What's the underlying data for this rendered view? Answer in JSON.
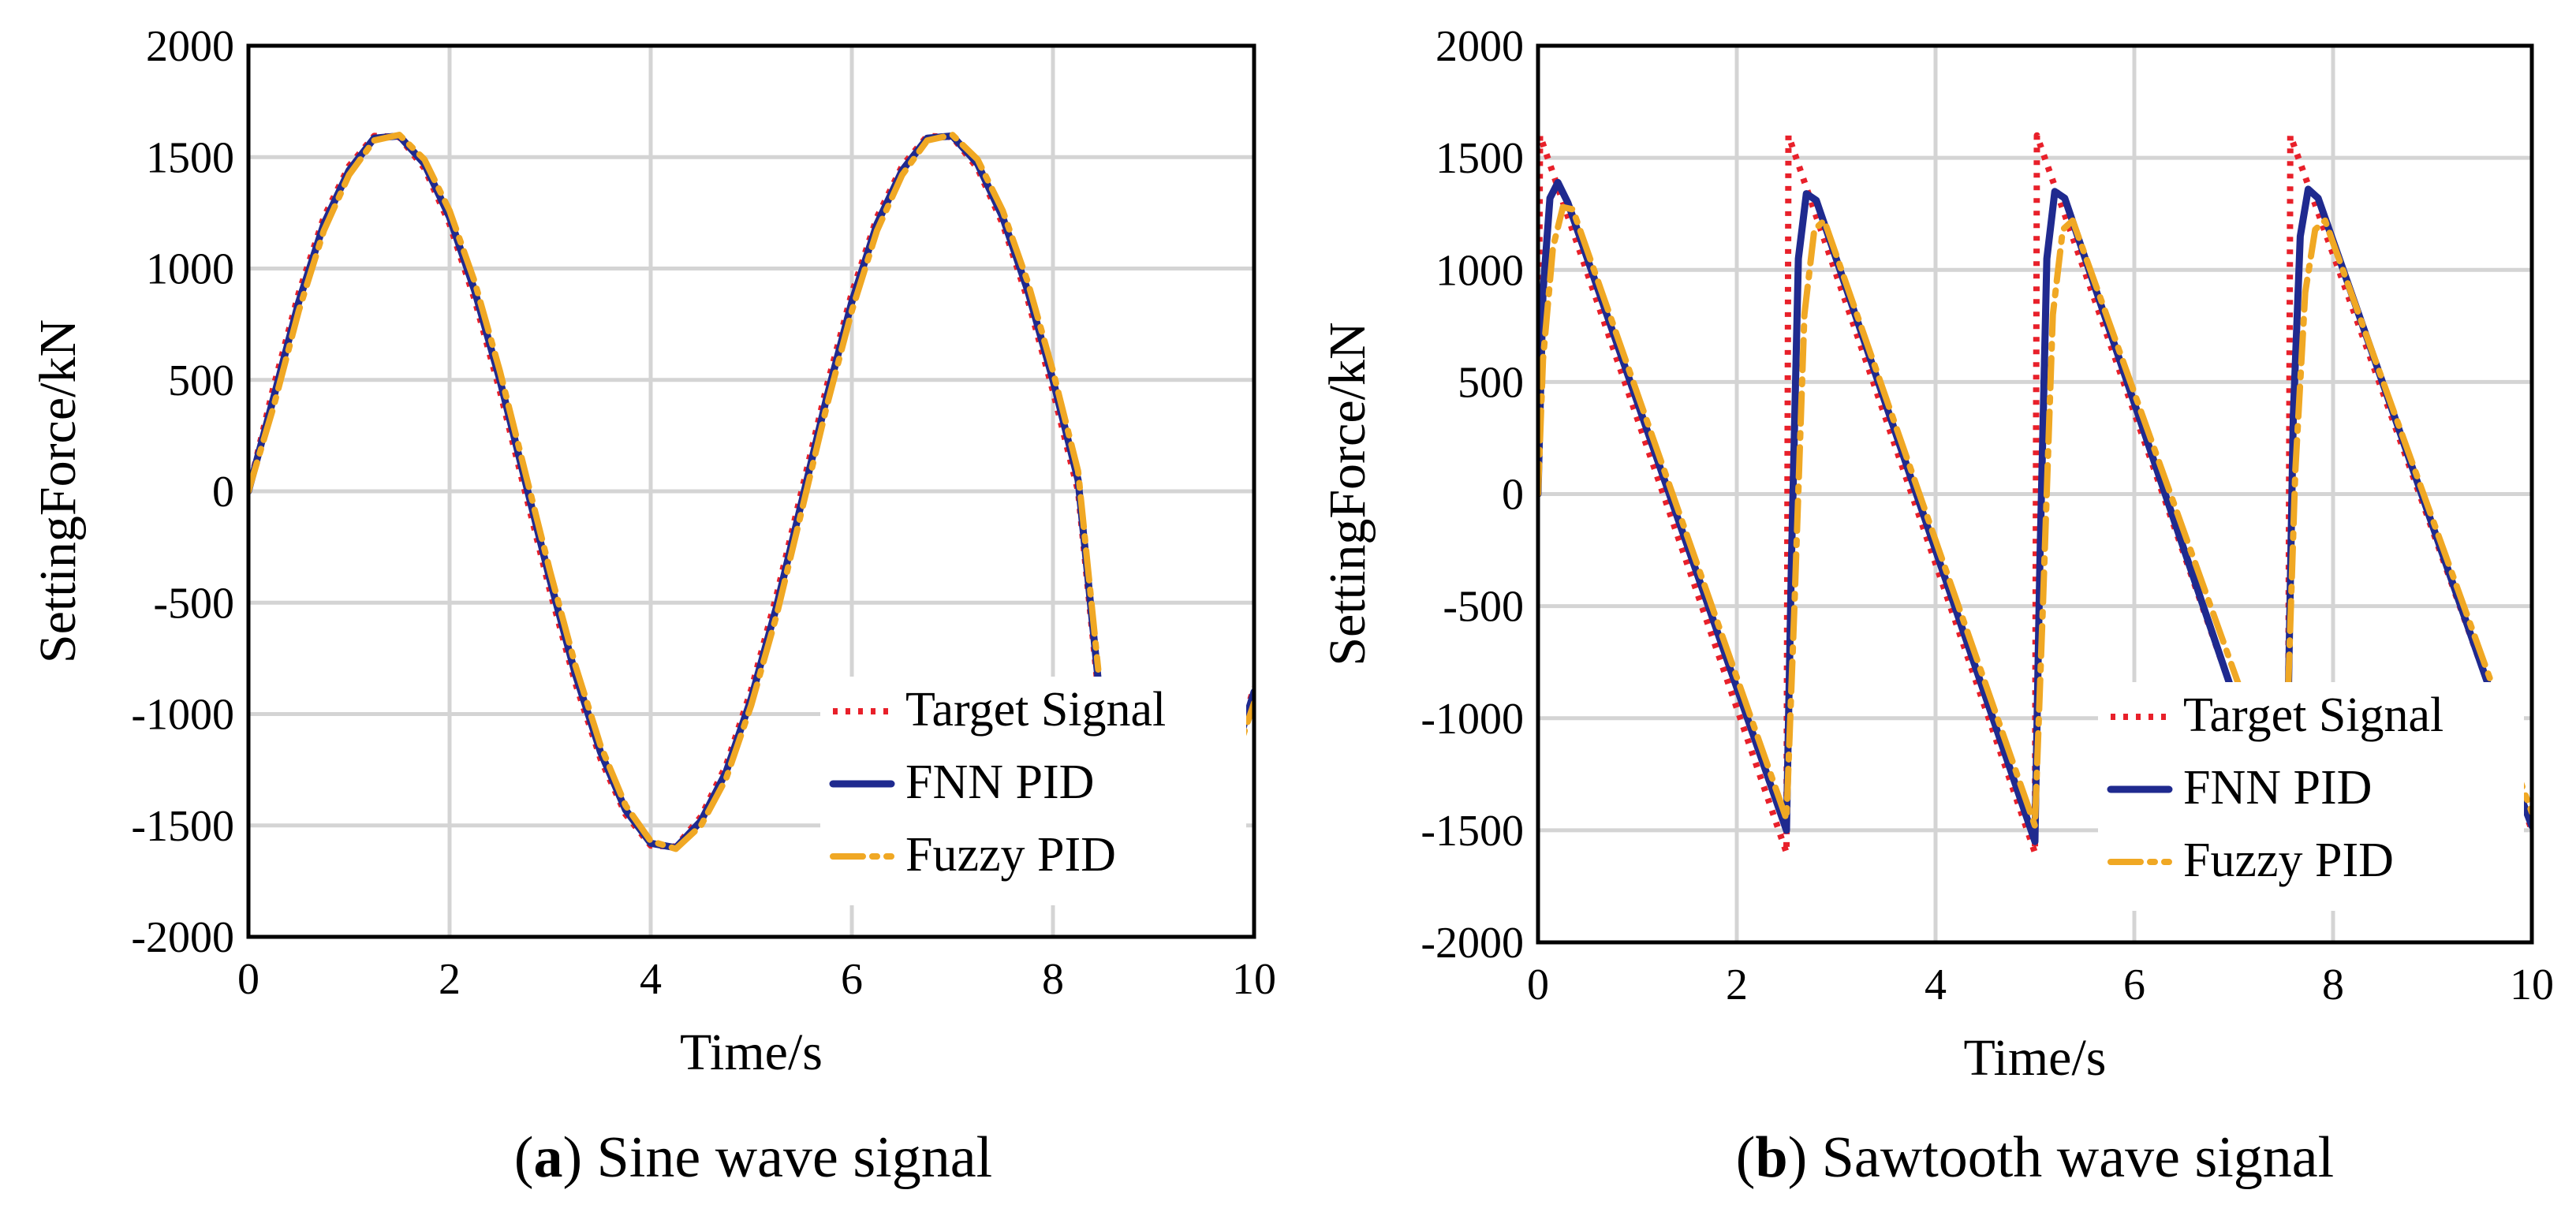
{
  "chart_data": [
    {
      "type": "line",
      "panel_letter": "a",
      "caption": "Sine wave signal",
      "xlabel": "Time/s",
      "ylabel": "SettingForce/kN",
      "xlim": [
        0,
        10
      ],
      "ylim": [
        -2000,
        2000
      ],
      "xticks": [
        "0",
        "2",
        "4",
        "6",
        "8",
        "10"
      ],
      "yticks": [
        "2000",
        "1500",
        "1000",
        "500",
        "0",
        "-500",
        "-1000",
        "-1500",
        "-2000"
      ],
      "grid": true,
      "legend_position": "bottom-right",
      "series": [
        {
          "name": "Target Signal",
          "color": "#e8202a",
          "style": "dotted",
          "segments": [
            {
              "x": [
                0,
                0.25,
                0.5,
                0.75,
                1,
                1.25,
                1.5,
                1.75,
                2,
                2.25,
                2.5,
                2.75,
                3,
                3.25,
                3.5,
                3.75,
                4,
                4.25,
                4.5,
                4.75,
                5,
                5.25,
                5.5,
                5.75,
                6,
                6.25,
                6.5,
                6.75,
                7,
                7.25,
                7.5,
                7.75,
                8,
                8.25,
                8.45
              ],
              "y": [
                0,
                470,
                890,
                1230,
                1460,
                1595,
                1590,
                1450,
                1200,
                860,
                450,
                0,
                -450,
                -860,
                -1200,
                -1450,
                -1590,
                -1595,
                -1460,
                -1230,
                -890,
                -470,
                0,
                470,
                890,
                1230,
                1460,
                1595,
                1590,
                1450,
                1200,
                860,
                450,
                0,
                -900
              ]
            },
            {
              "x": [
                9.75,
                9.85,
                10
              ],
              "y": [
                -1200,
                -1100,
                -880
              ]
            }
          ]
        },
        {
          "name": "FNN PID",
          "color": "#1f2a8f",
          "style": "solid",
          "segments": [
            {
              "x": [
                0,
                0.25,
                0.5,
                0.75,
                1,
                1.25,
                1.5,
                1.75,
                2,
                2.25,
                2.5,
                2.75,
                3,
                3.25,
                3.5,
                3.75,
                4,
                4.25,
                4.5,
                4.75,
                5,
                5.25,
                5.5,
                5.75,
                6,
                6.25,
                6.5,
                6.75,
                7,
                7.25,
                7.5,
                7.75,
                8,
                8.25,
                8.45
              ],
              "y": [
                0,
                420,
                850,
                1200,
                1440,
                1585,
                1595,
                1470,
                1230,
                900,
                500,
                50,
                -400,
                -820,
                -1170,
                -1430,
                -1580,
                -1600,
                -1480,
                -1260,
                -930,
                -520,
                -50,
                420,
                850,
                1200,
                1440,
                1585,
                1595,
                1470,
                1230,
                900,
                500,
                50,
                -850
              ]
            },
            {
              "x": [
                9.75,
                9.85,
                10
              ],
              "y": [
                -1180,
                -1120,
                -900
              ]
            }
          ]
        },
        {
          "name": "Fuzzy PID",
          "color": "#f0a824",
          "style": "dashdot",
          "segments": [
            {
              "x": [
                0,
                0.25,
                0.5,
                0.75,
                1,
                1.25,
                1.5,
                1.75,
                2,
                2.25,
                2.5,
                2.75,
                3,
                3.25,
                3.5,
                3.75,
                4,
                4.25,
                4.5,
                4.75,
                5,
                5.25,
                5.5,
                5.75,
                6,
                6.25,
                6.5,
                6.75,
                7,
                7.25,
                7.5,
                7.75,
                8,
                8.25,
                8.45
              ],
              "y": [
                0,
                380,
                810,
                1170,
                1420,
                1575,
                1600,
                1490,
                1260,
                940,
                540,
                90,
                -360,
                -780,
                -1140,
                -1410,
                -1570,
                -1605,
                -1500,
                -1290,
                -960,
                -560,
                -90,
                380,
                810,
                1170,
                1420,
                1575,
                1600,
                1490,
                1260,
                940,
                540,
                90,
                -800
              ]
            },
            {
              "x": [
                9.75,
                9.85,
                10
              ],
              "y": [
                -1260,
                -1150,
                -950
              ]
            }
          ]
        }
      ]
    },
    {
      "type": "line",
      "panel_letter": "b",
      "caption": "Sawtooth wave signal",
      "xlabel": "Time/s",
      "ylabel": "SettingForce/kN",
      "xlim": [
        0,
        10
      ],
      "ylim": [
        -2000,
        2000
      ],
      "xticks": [
        "0",
        "2",
        "4",
        "6",
        "8",
        "10"
      ],
      "yticks": [
        "2000",
        "1500",
        "1000",
        "500",
        "0",
        "-500",
        "-1000",
        "-1500",
        "-2000"
      ],
      "grid": true,
      "legend_position": "bottom-right",
      "series": [
        {
          "name": "Target Signal",
          "color": "#e8202a",
          "style": "dotted",
          "segments": [
            {
              "x": [
                0,
                0.02,
                2.5,
                2.5,
                2.52,
                5.0,
                5.0,
                5.02,
                7.0
              ],
              "y": [
                0,
                1600,
                -1600,
                -1600,
                1600,
                -1600,
                -1600,
                1600,
                -900
              ]
            },
            {
              "x": [
                7.55,
                7.57,
                9.6
              ],
              "y": [
                -900,
                1600,
                -900
              ]
            },
            {
              "x": [
                9.8,
                10
              ],
              "y": [
                -1250,
                -1500
              ]
            }
          ]
        },
        {
          "name": "FNN PID",
          "color": "#1f2a8f",
          "style": "solid",
          "segments": [
            {
              "x": [
                0,
                0.05,
                0.12,
                0.2,
                0.3,
                2.5,
                2.55,
                2.62,
                2.7,
                2.8,
                5.0,
                5.05,
                5.12,
                5.2,
                5.3,
                7.0
              ],
              "y": [
                0,
                900,
                1320,
                1390,
                1300,
                -1500,
                -300,
                1050,
                1340,
                1310,
                -1550,
                -300,
                1050,
                1350,
                1320,
                -900
              ]
            },
            {
              "x": [
                7.55,
                7.6,
                7.67,
                7.75,
                7.85,
                9.6
              ],
              "y": [
                -900,
                350,
                1150,
                1360,
                1320,
                -900
              ]
            },
            {
              "x": [
                9.8,
                10
              ],
              "y": [
                -1250,
                -1480
              ]
            }
          ]
        },
        {
          "name": "Fuzzy PID",
          "color": "#f0a824",
          "style": "dashdot",
          "segments": [
            {
              "x": [
                0,
                0.05,
                0.15,
                0.25,
                0.35,
                2.5,
                2.58,
                2.68,
                2.78,
                2.88,
                5.0,
                5.08,
                5.18,
                5.28,
                5.38,
                7.05
              ],
              "y": [
                0,
                600,
                1100,
                1280,
                1270,
                -1450,
                -500,
                800,
                1180,
                1220,
                -1480,
                -500,
                800,
                1180,
                1220,
                -850
              ]
            },
            {
              "x": [
                7.55,
                7.62,
                7.72,
                7.82,
                7.92,
                9.6
              ],
              "y": [
                -850,
                100,
                900,
                1180,
                1220,
                -850
              ]
            },
            {
              "x": [
                9.8,
                10
              ],
              "y": [
                -1180,
                -1420
              ]
            }
          ]
        }
      ]
    }
  ]
}
